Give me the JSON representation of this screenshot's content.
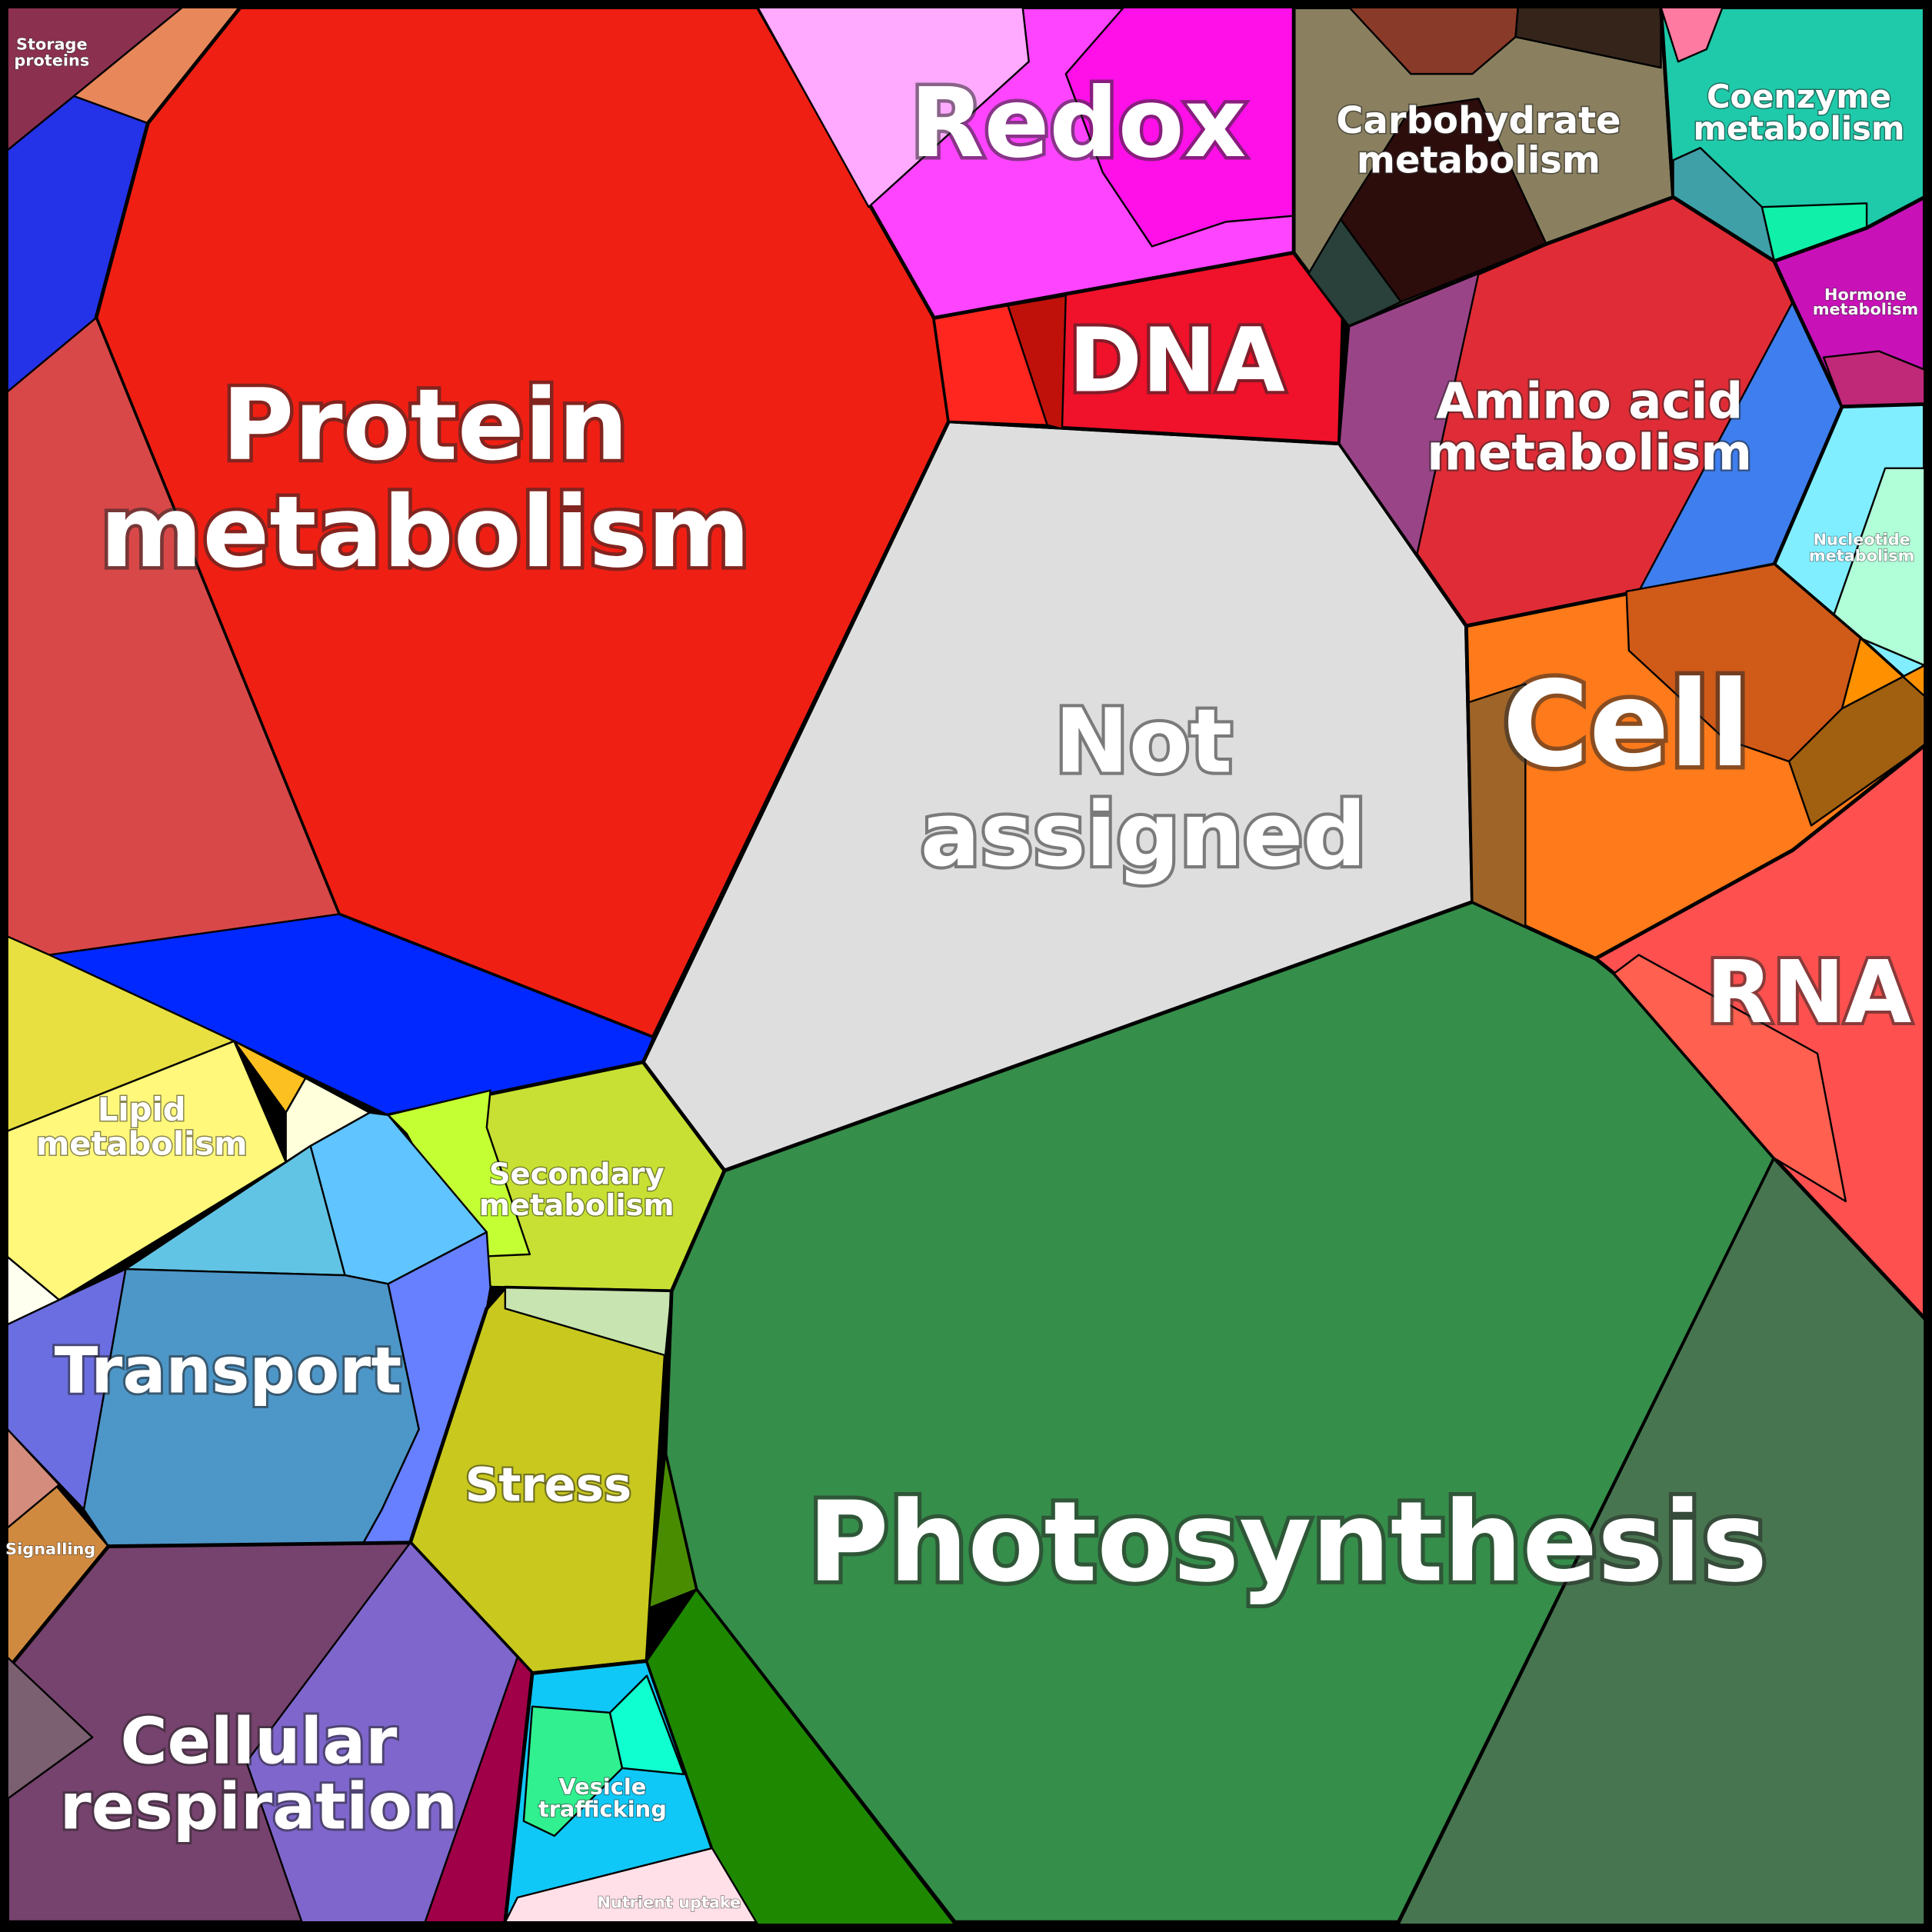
{
  "labels": [
    {
      "lines": [
        "Storage",
        "proteins"
      ]
    },
    {
      "lines": [
        "Protein",
        "metabolism"
      ]
    },
    {
      "lines": [
        "Redox"
      ]
    },
    {
      "lines": [
        "Carbohydrate",
        "metabolism"
      ]
    },
    {
      "lines": [
        "Coenzyme",
        "metabolism"
      ]
    },
    {
      "lines": [
        "DNA"
      ]
    },
    {
      "lines": [
        "Hormone",
        "metabolism"
      ]
    },
    {
      "lines": [
        "Amino acid",
        "metabolism"
      ]
    },
    {
      "lines": [
        "Nucleotide",
        "metabolism"
      ]
    },
    {
      "lines": [
        "Not",
        "assigned"
      ]
    },
    {
      "lines": [
        "Cell"
      ]
    },
    {
      "lines": [
        "RNA"
      ]
    },
    {
      "lines": [
        "Lipid",
        "metabolism"
      ]
    },
    {
      "lines": [
        "Secondary",
        "metabolism"
      ]
    },
    {
      "lines": [
        "Transport"
      ]
    },
    {
      "lines": [
        "Stress"
      ]
    },
    {
      "lines": [
        "Signalling"
      ]
    },
    {
      "lines": [
        "Photosynthesis"
      ]
    },
    {
      "lines": [
        "Cellular",
        "respiration"
      ]
    },
    {
      "lines": [
        "Vesicle",
        "trafficking"
      ]
    },
    {
      "lines": [
        "Nutrient uptake"
      ]
    }
  ]
}
